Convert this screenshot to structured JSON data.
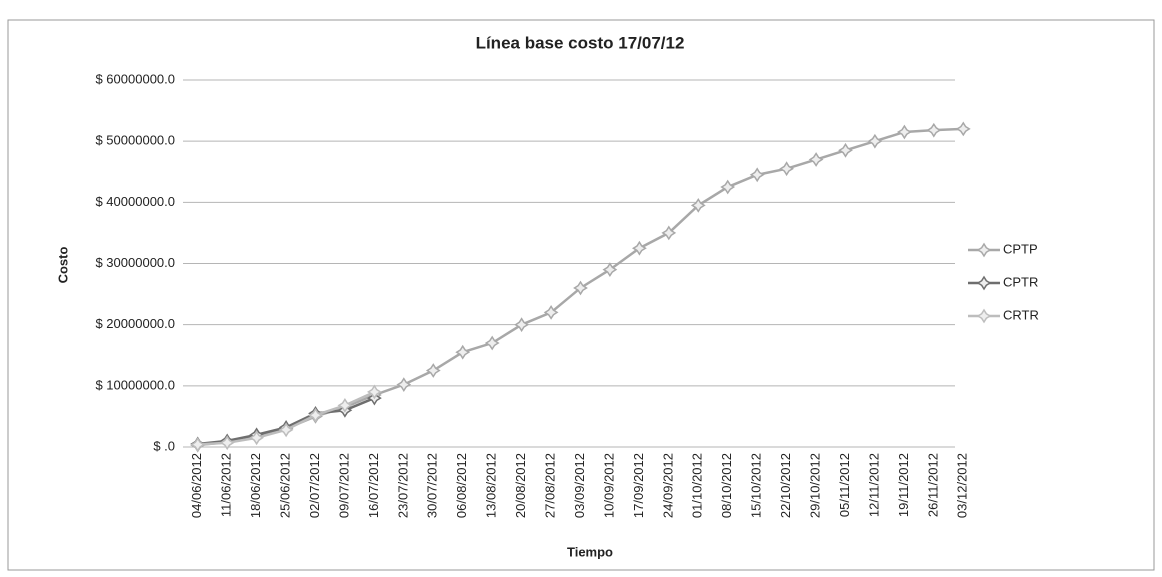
{
  "chart_data": {
    "type": "line",
    "title": "Línea base costo  17/07/12",
    "x_label": "Tiempo",
    "y_label": "Costo",
    "categories": [
      "04/06/2012",
      "11/06/2012",
      "18/06/2012",
      "25/06/2012",
      "02/07/2012",
      "09/07/2012",
      "16/07/2012",
      "23/07/2012",
      "30/07/2012",
      "06/08/2012",
      "13/08/2012",
      "20/08/2012",
      "27/08/2012",
      "03/09/2012",
      "10/09/2012",
      "17/09/2012",
      "24/09/2012",
      "01/10/2012",
      "08/10/2012",
      "15/10/2012",
      "22/10/2012",
      "29/10/2012",
      "05/11/2012",
      "12/11/2012",
      "19/11/2012",
      "26/11/2012",
      "03/12/2012"
    ],
    "series": [
      {
        "name": "CPTP",
        "color": "#a8a8a8",
        "values": [
          300000,
          800000,
          1800000,
          3000000,
          5000000,
          6500000,
          8500000,
          10200000,
          12500000,
          15500000,
          17000000,
          20000000,
          22000000,
          26000000,
          29000000,
          32500000,
          35000000,
          39500000,
          42500000,
          44500000,
          45500000,
          47000000,
          48500000,
          50000000,
          51500000,
          51800000,
          52000000
        ]
      },
      {
        "name": "CPTR",
        "color": "#6e6e6e",
        "values": [
          500000,
          1000000,
          2000000,
          3200000,
          5500000,
          6000000,
          8000000,
          null,
          null,
          null,
          null,
          null,
          null,
          null,
          null,
          null,
          null,
          null,
          null,
          null,
          null,
          null,
          null,
          null,
          null,
          null,
          null
        ]
      },
      {
        "name": "CRTR",
        "color": "#bdbdbd",
        "values": [
          400000,
          700000,
          1500000,
          2800000,
          5200000,
          6800000,
          9000000,
          null,
          null,
          null,
          null,
          null,
          null,
          null,
          null,
          null,
          null,
          null,
          null,
          null,
          null,
          null,
          null,
          null,
          null,
          null,
          null
        ]
      }
    ],
    "ylim": [
      0,
      60000000
    ],
    "yticks": [
      {
        "value": 0,
        "label": "$ .0"
      },
      {
        "value": 10000000,
        "label": "$ 10000000.0"
      },
      {
        "value": 20000000,
        "label": "$ 20000000.0"
      },
      {
        "value": 30000000,
        "label": "$ 30000000.0"
      },
      {
        "value": 40000000,
        "label": "$ 40000000.0"
      },
      {
        "value": 50000000,
        "label": "$ 50000000.0"
      },
      {
        "value": 60000000,
        "label": "$ 60000000.0"
      }
    ],
    "grid": true,
    "legend": "right"
  }
}
